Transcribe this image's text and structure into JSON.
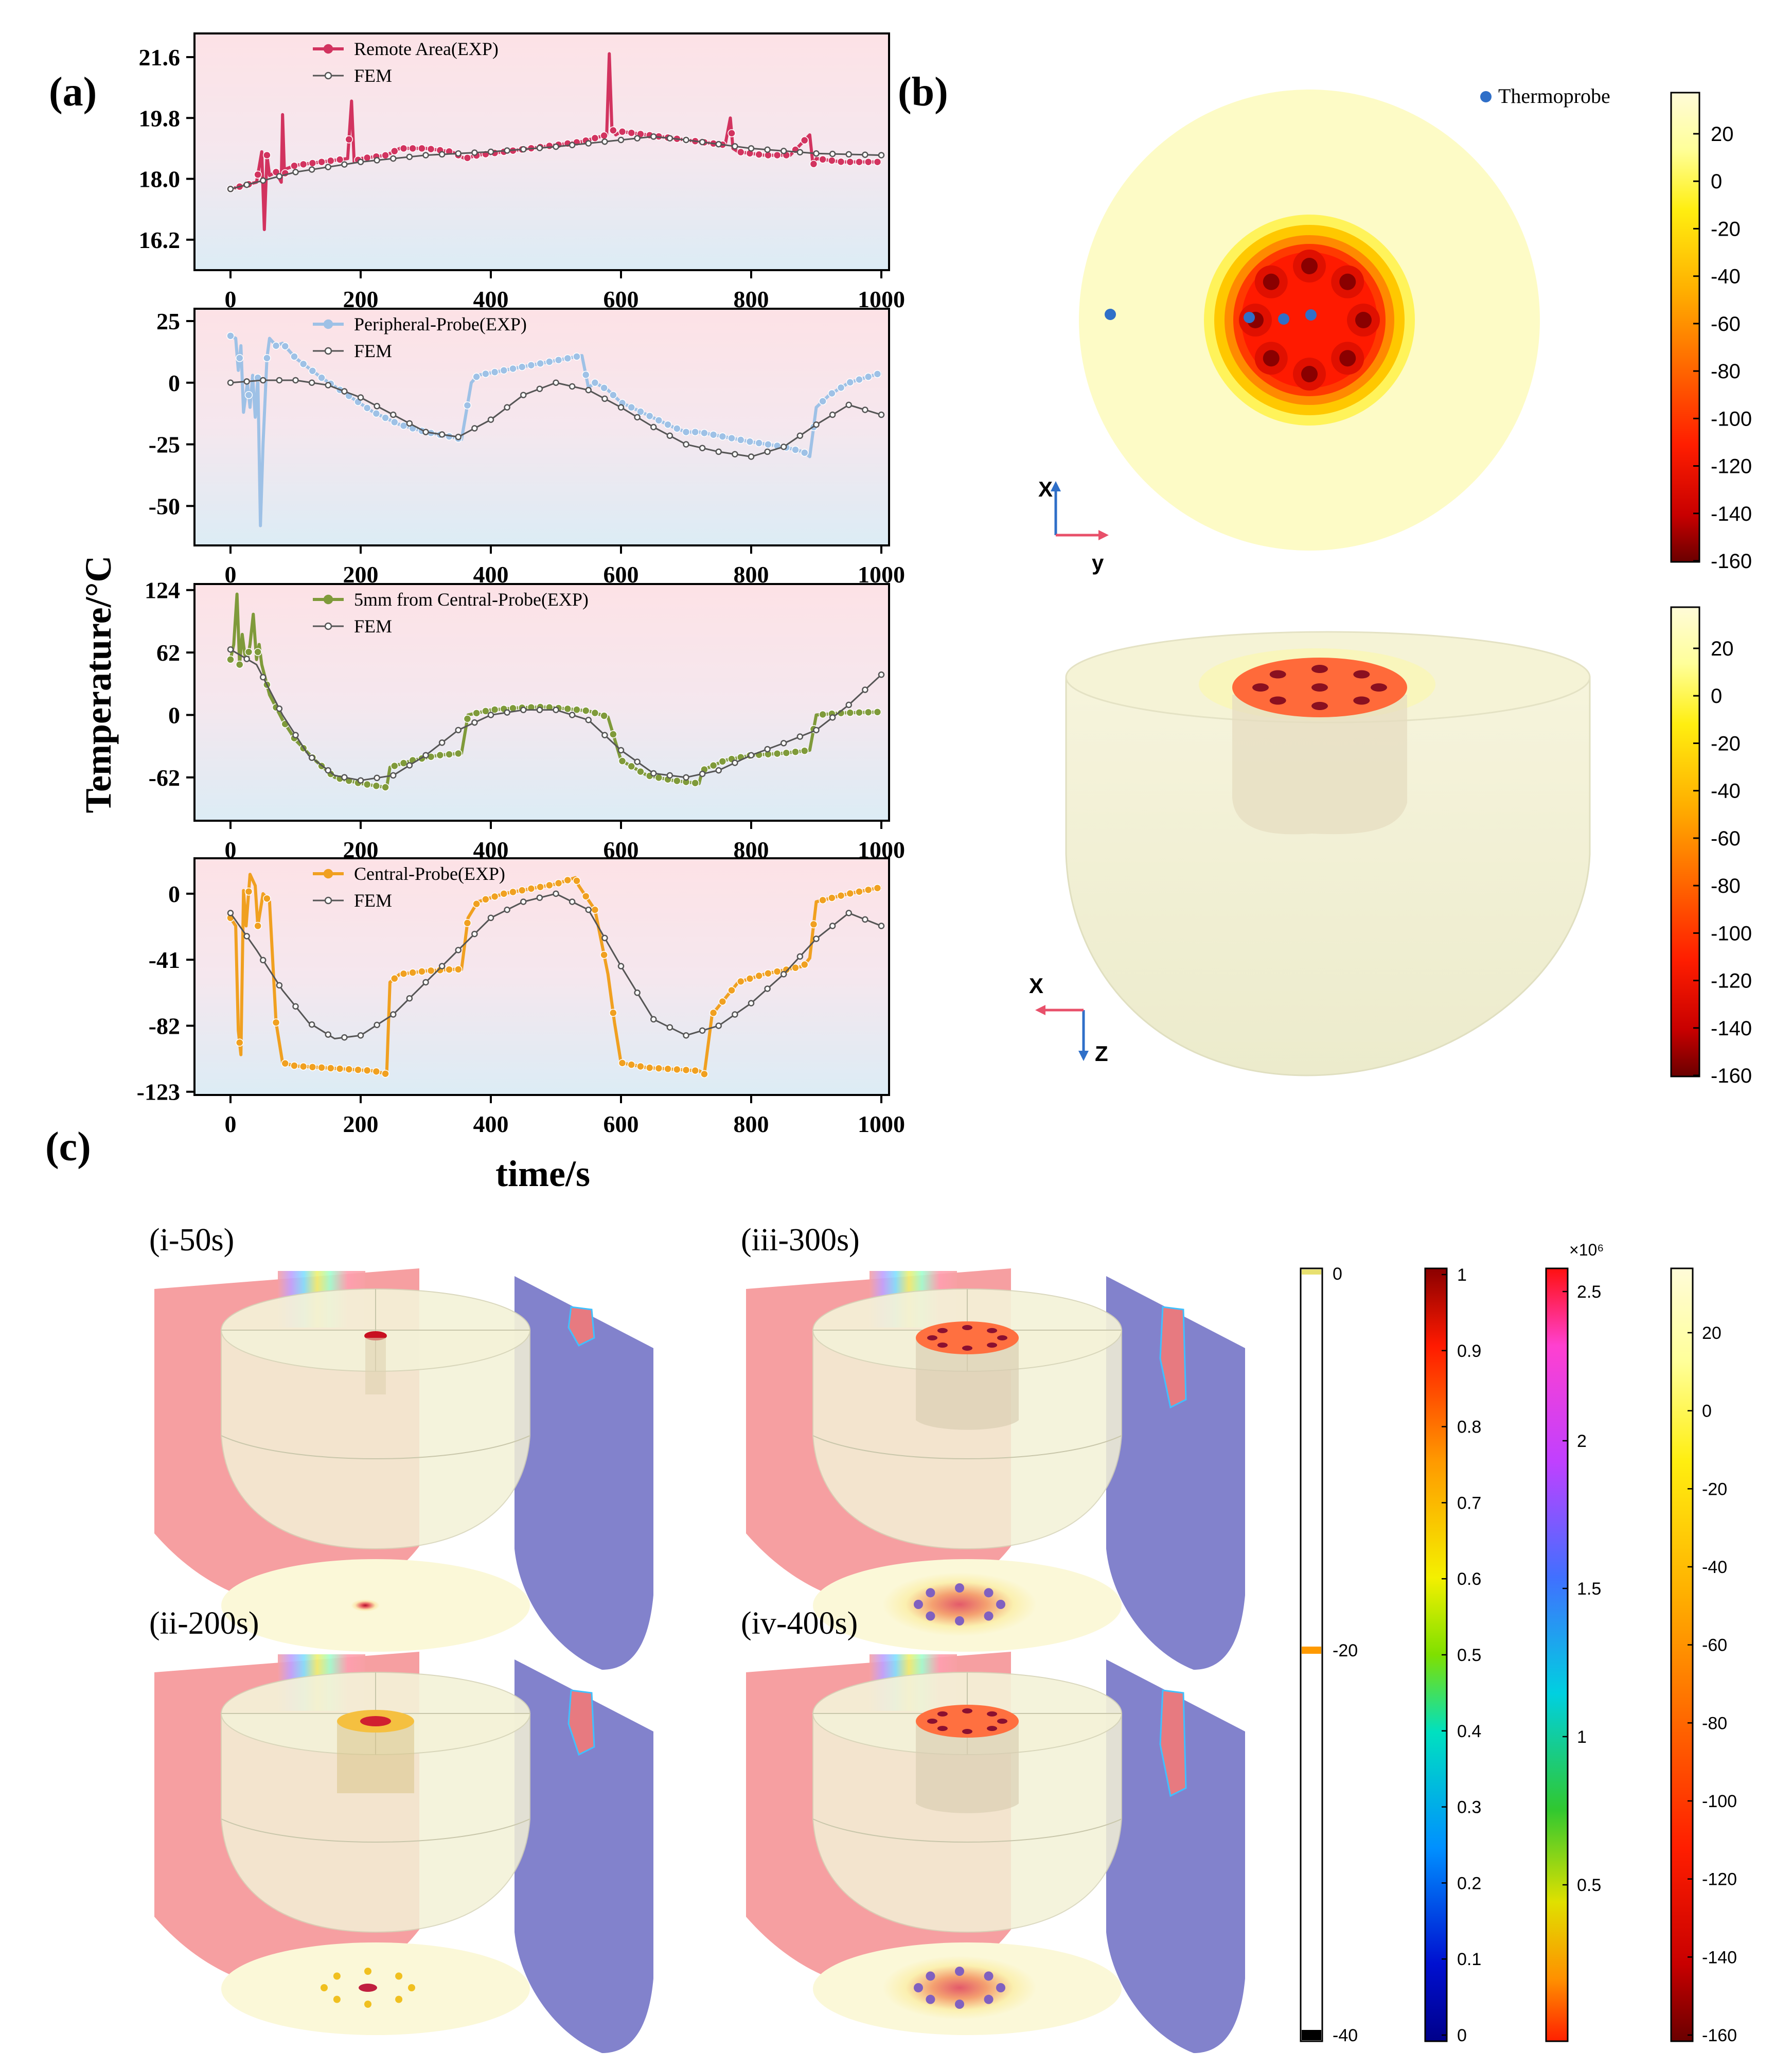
{
  "panels": {
    "a_label": "(a)",
    "b_label": "(b)",
    "c_label": "(c)"
  },
  "axes_labels": {
    "ylabel": "Temperature/°C",
    "xlabel": "time/s"
  },
  "panel_b": {
    "legend": "Thermoprobe",
    "top_axes": {
      "vertical": "X",
      "horizontal": "y"
    },
    "bottom_axes": {
      "horizontal": "X",
      "vertical": "Z"
    },
    "colorbar_ticks": [
      "20",
      "0",
      "-20",
      "-40",
      "-60",
      "-80",
      "-100",
      "-120",
      "-140",
      "-160"
    ]
  },
  "panel_c": {
    "snapshots": [
      "(i-50s)",
      "(iii-300s)",
      "(ii-200s)",
      "(iv-400s)"
    ],
    "bar1_ticks": [
      "0",
      "-20",
      "-40"
    ],
    "bar2_ticks": [
      "1",
      "0.9",
      "0.8",
      "0.7",
      "0.6",
      "0.5",
      "0.4",
      "0.3",
      "0.2",
      "0.1",
      "0"
    ],
    "bar3_exponent": "×10⁶",
    "bar3_ticks": [
      "2.5",
      "2",
      "1.5",
      "1",
      "0.5"
    ],
    "bar4_ticks": [
      "20",
      "0",
      "-20",
      "-40",
      "-60",
      "-80",
      "-100",
      "-120",
      "-140",
      "-160"
    ]
  },
  "colors": {
    "remote": "#d2335f",
    "peripheral": "#9ec1e6",
    "fivemm": "#7f9a3a",
    "central": "#f0a020",
    "fem": "#555555"
  },
  "chart_data": [
    {
      "type": "line",
      "title": "",
      "xlabel": "time/s",
      "ylabel": "Temperature/°C",
      "xlim": [
        0,
        1000
      ],
      "ylim": [
        15.3,
        22.3
      ],
      "xticks": [
        "0",
        "200",
        "400",
        "600",
        "800",
        "1000"
      ],
      "yticks": [
        "21.6",
        "19.8",
        "18.0",
        "16.2"
      ],
      "ytick_values": [
        21.6,
        19.8,
        18.0,
        16.2
      ],
      "series": [
        {
          "name": "Remote Area(EXP)",
          "x": [
            0,
            20,
            40,
            48,
            52,
            56,
            60,
            70,
            78,
            80,
            83,
            86,
            100,
            140,
            180,
            186,
            190,
            200,
            240,
            260,
            300,
            340,
            360,
            380,
            420,
            460,
            500,
            540,
            578,
            582,
            586,
            592,
            600,
            640,
            680,
            720,
            760,
            768,
            772,
            780,
            820,
            860,
            890,
            895,
            900,
            940,
            980,
            1000
          ],
          "y": [
            17.7,
            17.8,
            17.9,
            18.8,
            16.5,
            18.7,
            18.1,
            18.2,
            17.9,
            19.9,
            18.1,
            18.3,
            18.4,
            18.5,
            18.6,
            20.3,
            18.5,
            18.6,
            18.7,
            18.9,
            18.9,
            18.8,
            18.6,
            18.7,
            18.8,
            18.9,
            19.0,
            19.1,
            19.3,
            21.7,
            19.5,
            19.3,
            19.4,
            19.3,
            19.2,
            19.1,
            19.0,
            19.8,
            18.9,
            18.8,
            18.7,
            18.7,
            19.3,
            18.4,
            18.6,
            18.5,
            18.5,
            18.5
          ]
        },
        {
          "name": "FEM",
          "x": [
            0,
            100,
            200,
            300,
            400,
            500,
            600,
            650,
            700,
            800,
            900,
            1000
          ],
          "y": [
            17.7,
            18.2,
            18.5,
            18.7,
            18.8,
            18.95,
            19.15,
            19.25,
            19.15,
            18.9,
            18.75,
            18.7
          ]
        }
      ]
    },
    {
      "type": "line",
      "xlim": [
        0,
        1000
      ],
      "ylim": [
        -66,
        30
      ],
      "xticks": [
        "0",
        "200",
        "400",
        "600",
        "800",
        "1000"
      ],
      "yticks": [
        "25",
        "0",
        "-25",
        "-50"
      ],
      "ytick_values": [
        25,
        0,
        -25,
        -50
      ],
      "series": [
        {
          "name": "Peripheral-Probe(EXP)",
          "x": [
            0,
            8,
            12,
            16,
            20,
            26,
            30,
            34,
            38,
            42,
            46,
            50,
            56,
            60,
            70,
            80,
            100,
            140,
            180,
            220,
            260,
            300,
            340,
            355,
            370,
            380,
            400,
            440,
            480,
            520,
            540,
            550,
            560,
            580,
            600,
            640,
            680,
            700,
            720,
            760,
            800,
            850,
            880,
            890,
            900,
            920,
            950,
            1000
          ],
          "y": [
            19,
            18,
            5,
            15,
            -12,
            0,
            -10,
            3,
            -14,
            2,
            -58,
            -25,
            10,
            18,
            15,
            16,
            10,
            2,
            -5,
            -12,
            -17,
            -20,
            -22,
            -23,
            0,
            3,
            4,
            6,
            8,
            10,
            11,
            -2,
            0,
            -3,
            -8,
            -13,
            -18,
            -20,
            -20,
            -22,
            -24,
            -26,
            -28,
            -30,
            -10,
            -5,
            0,
            4
          ]
        },
        {
          "name": "FEM",
          "x": [
            0,
            50,
            100,
            150,
            200,
            250,
            300,
            350,
            400,
            450,
            500,
            550,
            600,
            650,
            700,
            750,
            800,
            850,
            900,
            950,
            1000
          ],
          "y": [
            0,
            1,
            1,
            -1,
            -6,
            -13,
            -20,
            -22,
            -15,
            -5,
            0,
            -3,
            -10,
            -18,
            -25,
            -28,
            -30,
            -26,
            -17,
            -9,
            -13
          ]
        }
      ]
    },
    {
      "type": "line",
      "xlim": [
        0,
        1000
      ],
      "ylim": [
        -105,
        130
      ],
      "xticks": [
        "0",
        "200",
        "400",
        "600",
        "800",
        "1000"
      ],
      "yticks": [
        "124",
        "62",
        "0",
        "-62"
      ],
      "ytick_values": [
        124,
        62,
        0,
        -62
      ],
      "series": [
        {
          "name": "5mm from Central-Probe(EXP)",
          "x": [
            0,
            5,
            10,
            14,
            18,
            22,
            26,
            30,
            35,
            40,
            44,
            48,
            60,
            80,
            100,
            130,
            160,
            200,
            240,
            245,
            280,
            320,
            355,
            365,
            400,
            440,
            480,
            520,
            550,
            580,
            600,
            640,
            680,
            720,
            725,
            760,
            800,
            850,
            890,
            900,
            940,
            1000
          ],
          "y": [
            55,
            70,
            120,
            50,
            80,
            60,
            55,
            70,
            100,
            55,
            70,
            50,
            20,
            -5,
            -25,
            -45,
            -62,
            -68,
            -72,
            -52,
            -45,
            -40,
            -38,
            0,
            5,
            7,
            8,
            6,
            4,
            -2,
            -45,
            -60,
            -65,
            -68,
            -55,
            -45,
            -40,
            -38,
            -35,
            0,
            2,
            3
          ]
        },
        {
          "name": "FEM",
          "x": [
            0,
            40,
            80,
            120,
            160,
            200,
            250,
            300,
            350,
            400,
            450,
            500,
            550,
            600,
            650,
            700,
            750,
            800,
            850,
            900,
            950,
            1000
          ],
          "y": [
            65,
            50,
            0,
            -40,
            -60,
            -65,
            -60,
            -40,
            -15,
            0,
            5,
            5,
            -5,
            -35,
            -58,
            -62,
            -55,
            -40,
            -28,
            -15,
            10,
            40
          ]
        }
      ]
    },
    {
      "type": "line",
      "xlim": [
        0,
        1000
      ],
      "ylim": [
        -125,
        22
      ],
      "xticks": [
        "0",
        "200",
        "400",
        "600",
        "800",
        "1000"
      ],
      "yticks": [
        "0",
        "-41",
        "-82",
        "-123"
      ],
      "ytick_values": [
        0,
        -41,
        -82,
        -123
      ],
      "series": [
        {
          "name": "Central-Probe(EXP)",
          "x": [
            0,
            8,
            12,
            16,
            20,
            24,
            30,
            38,
            42,
            50,
            60,
            70,
            80,
            100,
            140,
            180,
            220,
            240,
            245,
            260,
            300,
            340,
            355,
            365,
            380,
            420,
            460,
            500,
            530,
            535,
            560,
            580,
            590,
            600,
            640,
            680,
            720,
            728,
            740,
            780,
            820,
            880,
            890,
            900,
            950,
            1000
          ],
          "y": [
            -15,
            -20,
            -85,
            -100,
            2,
            -20,
            12,
            5,
            -20,
            0,
            -5,
            -80,
            -105,
            -107,
            -108,
            -109,
            -110,
            -112,
            -55,
            -50,
            -48,
            -47,
            -47,
            -15,
            -5,
            0,
            3,
            6,
            10,
            5,
            -10,
            -50,
            -80,
            -105,
            -108,
            -109,
            -110,
            -112,
            -75,
            -55,
            -50,
            -45,
            -40,
            -5,
            0,
            4
          ]
        },
        {
          "name": "FEM",
          "x": [
            0,
            40,
            80,
            120,
            160,
            200,
            250,
            300,
            350,
            400,
            450,
            500,
            550,
            600,
            650,
            700,
            750,
            800,
            850,
            900,
            950,
            1000
          ],
          "y": [
            -12,
            -35,
            -60,
            -80,
            -90,
            -88,
            -75,
            -55,
            -35,
            -15,
            -5,
            0,
            -10,
            -45,
            -78,
            -88,
            -82,
            -68,
            -50,
            -28,
            -12,
            -20
          ]
        }
      ]
    }
  ]
}
